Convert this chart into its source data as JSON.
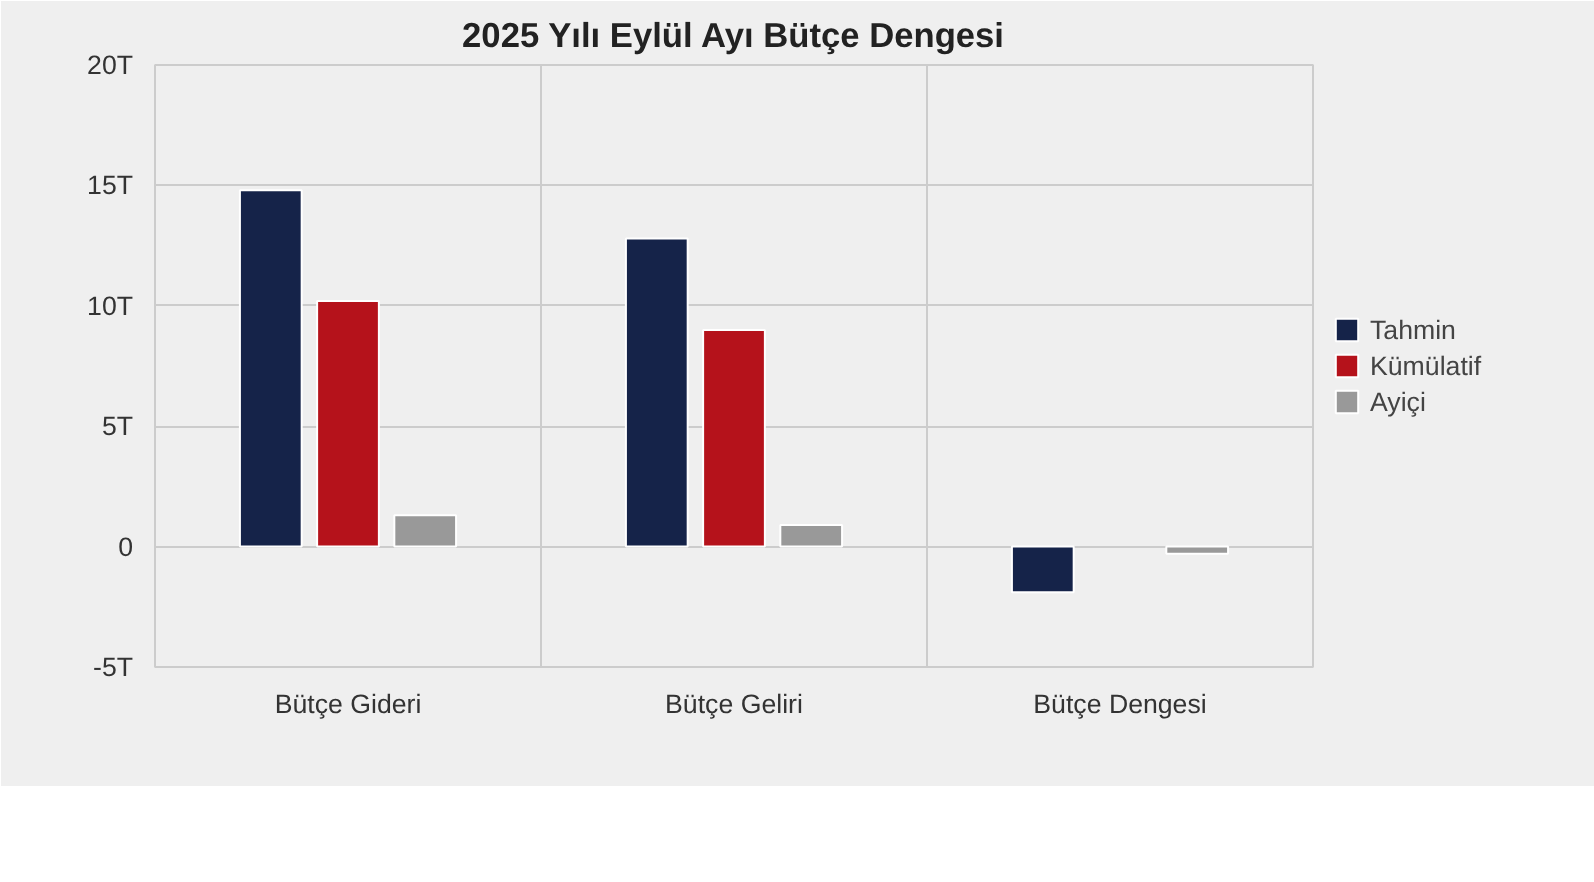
{
  "chart_data": {
    "type": "bar",
    "title": "2025 Yılı Eylül Ayı Bütçe Dengesi",
    "categories": [
      "Bütçe Gideri",
      "Bütçe Geliri",
      "Bütçe Dengesi"
    ],
    "series": [
      {
        "name": "Tahmin",
        "color": "#152349",
        "values": [
          14.8,
          12.8,
          -1.9
        ]
      },
      {
        "name": "Kümülatif",
        "color": "#b5121b",
        "values": [
          10.2,
          9.0,
          null
        ]
      },
      {
        "name": "Ayiçi",
        "color": "#999999",
        "values": [
          1.3,
          0.9,
          -0.3
        ]
      }
    ],
    "ylim": [
      -5,
      20
    ],
    "yticks": [
      {
        "value": -5,
        "label": "-5T"
      },
      0,
      {
        "value": 5,
        "label": "5T"
      },
      {
        "value": 10,
        "label": "10T"
      },
      {
        "value": 15,
        "label": "15T"
      },
      {
        "value": 20,
        "label": "20T"
      }
    ],
    "grid": true,
    "legend": "right"
  }
}
